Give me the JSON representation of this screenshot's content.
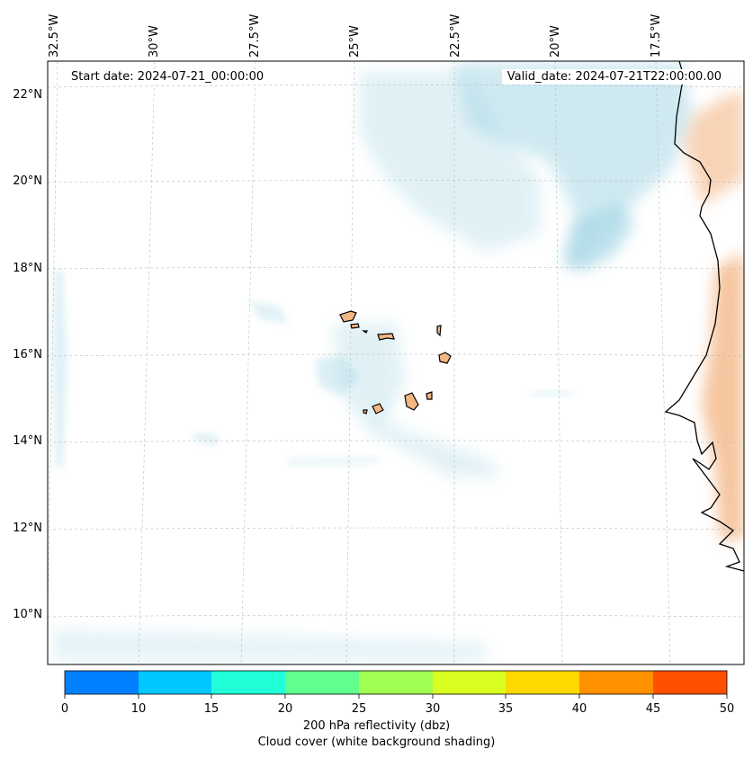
{
  "map": {
    "start_date": "Start date: 2024-07-21_00:00:00",
    "valid_date": "Valid_date: 2024-07-21T22:00:00.00",
    "lon_labels": [
      "32.5°W",
      "30°W",
      "27.5°W",
      "25°W",
      "22.5°W",
      "20°W",
      "17.5°W"
    ],
    "lat_labels": [
      "22°N",
      "20°N",
      "18°N",
      "16°N",
      "14°N",
      "12°N",
      "10°N"
    ],
    "colors": {
      "cloud": "#a9d8e6",
      "land_warm": "#f0a060",
      "island_fill": "#f2b783",
      "coast": "#000000",
      "grid": "#bbbbbb"
    }
  },
  "colorbar": {
    "ticks": [
      "0",
      "10",
      "15",
      "20",
      "25",
      "30",
      "35",
      "40",
      "45",
      "50"
    ],
    "colors": [
      "#0080ff",
      "#00c8ff",
      "#20ffd8",
      "#60ff90",
      "#a0ff50",
      "#d8ff20",
      "#ffd800",
      "#ff9000",
      "#ff5000"
    ],
    "label_line1": "200 hPa reflectivity (dbz)",
    "label_line2": "Cloud cover (white background shading)"
  }
}
